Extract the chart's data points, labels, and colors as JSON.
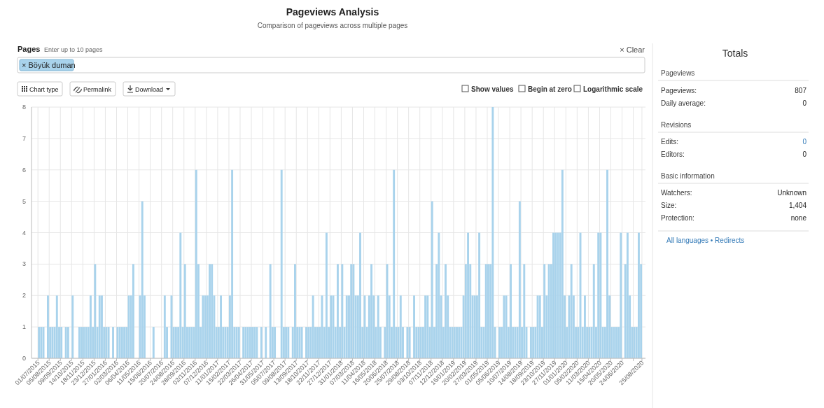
{
  "chart_data": [
    {
      "type": "bar",
      "title": "Pageviews Analysis",
      "subtitle": "Comparison of pageviews across multiple pages",
      "annotations": [
        "Pages",
        "Enter up to 10 pages",
        "× Clear",
        "× Böyük duman",
        "Chart type",
        "Permalink",
        "Download",
        "Show values",
        "Begin at zero",
        "Logarithmic scale"
      ],
      "color": "#a9d3ec",
      "grid": true,
      "ylim": [
        0,
        8
      ],
      "yticks": [
        0,
        1,
        2,
        3,
        4,
        5,
        6,
        7,
        8
      ],
      "xlim": [
        "2015-06-11",
        "2020-09-05"
      ],
      "xticks": [
        {
          "value": "2015-07-01",
          "label": "01/07/2015"
        },
        {
          "value": "2015-08-05",
          "label": "05/08/2015"
        },
        {
          "value": "2015-09-09",
          "label": "09/09/2015"
        },
        {
          "value": "2015-10-14",
          "label": "14/10/2015"
        },
        {
          "value": "2015-11-18",
          "label": "18/11/2015"
        },
        {
          "value": "2015-12-23",
          "label": "23/12/2015"
        },
        {
          "value": "2016-01-27",
          "label": "27/01/2016"
        },
        {
          "value": "2016-03-02",
          "label": "02/03/2016"
        },
        {
          "value": "2016-04-06",
          "label": "06/04/2016"
        },
        {
          "value": "2016-05-11",
          "label": "11/05/2016"
        },
        {
          "value": "2016-06-15",
          "label": "15/06/2016"
        },
        {
          "value": "2016-07-20",
          "label": "20/07/2016"
        },
        {
          "value": "2016-08-24",
          "label": "24/08/2016"
        },
        {
          "value": "2016-09-28",
          "label": "28/09/2016"
        },
        {
          "value": "2016-11-02",
          "label": "02/11/2016"
        },
        {
          "value": "2016-12-07",
          "label": "07/12/2016"
        },
        {
          "value": "2017-01-11",
          "label": "11/01/2017"
        },
        {
          "value": "2017-02-15",
          "label": "15/02/2017"
        },
        {
          "value": "2017-03-22",
          "label": "22/03/2017"
        },
        {
          "value": "2017-04-26",
          "label": "26/04/2017"
        },
        {
          "value": "2017-05-31",
          "label": "31/05/2017"
        },
        {
          "value": "2017-07-05",
          "label": "05/07/2017"
        },
        {
          "value": "2017-08-09",
          "label": "09/08/2017"
        },
        {
          "value": "2017-09-13",
          "label": "13/09/2017"
        },
        {
          "value": "2017-10-18",
          "label": "18/10/2017"
        },
        {
          "value": "2017-11-22",
          "label": "22/11/2017"
        },
        {
          "value": "2017-12-27",
          "label": "27/12/2017"
        },
        {
          "value": "2018-01-31",
          "label": "31/01/2018"
        },
        {
          "value": "2018-03-07",
          "label": "07/03/2018"
        },
        {
          "value": "2018-04-11",
          "label": "11/04/2018"
        },
        {
          "value": "2018-05-16",
          "label": "16/05/2018"
        },
        {
          "value": "2018-06-20",
          "label": "20/06/2018"
        },
        {
          "value": "2018-07-25",
          "label": "25/07/2018"
        },
        {
          "value": "2018-08-29",
          "label": "29/08/2018"
        },
        {
          "value": "2018-10-03",
          "label": "03/10/2018"
        },
        {
          "value": "2018-11-07",
          "label": "07/11/2018"
        },
        {
          "value": "2018-12-12",
          "label": "12/12/2018"
        },
        {
          "value": "2019-01-16",
          "label": "16/01/2019"
        },
        {
          "value": "2019-02-20",
          "label": "20/02/2019"
        },
        {
          "value": "2019-03-27",
          "label": "27/03/2019"
        },
        {
          "value": "2019-05-01",
          "label": "01/05/2019"
        },
        {
          "value": "2019-06-05",
          "label": "05/06/2019"
        },
        {
          "value": "2019-07-10",
          "label": "10/07/2019"
        },
        {
          "value": "2019-08-14",
          "label": "14/08/2019"
        },
        {
          "value": "2019-09-18",
          "label": "18/09/2019"
        },
        {
          "value": "2019-10-23",
          "label": "23/10/2019"
        },
        {
          "value": "2019-11-27",
          "label": "27/11/2019"
        },
        {
          "value": "2020-01-01",
          "label": "01/01/2020"
        },
        {
          "value": "2020-02-05",
          "label": "05/02/2020"
        },
        {
          "value": "2020-03-11",
          "label": "11/03/2020"
        },
        {
          "value": "2020-04-15",
          "label": "15/04/2020"
        },
        {
          "value": "2020-05-20",
          "label": "20/05/2020"
        },
        {
          "value": "2020-06-24",
          "label": "24/06/2020"
        },
        {
          "value": "2020-07-29",
          "label": null
        },
        {
          "value": "2020-08-25",
          "label": "25/08/2020"
        }
      ],
      "x": [
        "2015-07-01",
        "2015-07-08",
        "2015-07-15",
        "2015-07-22",
        "2015-07-29",
        "2015-08-05",
        "2015-08-12",
        "2015-08-19",
        "2015-08-26",
        "2015-09-02",
        "2015-09-09",
        "2015-09-16",
        "2015-09-23",
        "2015-09-30",
        "2015-10-07",
        "2015-10-14",
        "2015-10-21",
        "2015-10-28",
        "2015-11-04",
        "2015-11-11",
        "2015-11-18",
        "2015-11-25",
        "2015-12-02",
        "2015-12-09",
        "2015-12-16",
        "2015-12-23",
        "2015-12-30",
        "2016-01-06",
        "2016-01-13",
        "2016-01-20",
        "2016-01-27",
        "2016-02-03",
        "2016-02-10",
        "2016-02-17",
        "2016-02-24",
        "2016-03-02",
        "2016-03-09",
        "2016-03-16",
        "2016-03-23",
        "2016-03-30",
        "2016-04-06",
        "2016-04-13",
        "2016-04-20",
        "2016-04-27",
        "2016-05-04",
        "2016-05-11",
        "2016-05-18",
        "2016-05-25",
        "2016-06-01",
        "2016-06-08",
        "2016-06-15",
        "2016-06-22",
        "2016-06-29",
        "2016-07-06",
        "2016-07-13",
        "2016-07-20",
        "2016-07-27",
        "2016-08-03",
        "2016-08-10",
        "2016-08-17",
        "2016-08-24",
        "2016-08-31",
        "2016-09-07",
        "2016-09-14",
        "2016-09-21",
        "2016-09-28",
        "2016-10-05",
        "2016-10-12",
        "2016-10-19",
        "2016-10-26",
        "2016-11-02",
        "2016-11-09",
        "2016-11-16",
        "2016-11-23",
        "2016-11-30",
        "2016-12-07",
        "2016-12-14",
        "2016-12-21",
        "2016-12-28",
        "2017-01-04",
        "2017-01-11",
        "2017-01-18",
        "2017-01-25",
        "2017-02-01",
        "2017-02-08",
        "2017-02-15",
        "2017-02-22",
        "2017-03-01",
        "2017-03-08",
        "2017-03-15",
        "2017-03-22",
        "2017-03-29",
        "2017-04-05",
        "2017-04-12",
        "2017-04-19",
        "2017-04-26",
        "2017-05-03",
        "2017-05-10",
        "2017-05-17",
        "2017-05-24",
        "2017-05-31",
        "2017-06-07",
        "2017-06-14",
        "2017-06-21",
        "2017-06-28",
        "2017-07-05",
        "2017-07-12",
        "2017-07-19",
        "2017-07-26",
        "2017-08-02",
        "2017-08-09",
        "2017-08-16",
        "2017-08-23",
        "2017-08-30",
        "2017-09-06",
        "2017-09-13",
        "2017-09-20",
        "2017-09-27",
        "2017-10-04",
        "2017-10-11",
        "2017-10-18",
        "2017-10-25",
        "2017-11-01",
        "2017-11-08",
        "2017-11-15",
        "2017-11-22",
        "2017-11-29",
        "2017-12-06",
        "2017-12-13",
        "2017-12-20",
        "2017-12-27",
        "2018-01-03",
        "2018-01-10",
        "2018-01-17",
        "2018-01-24",
        "2018-01-31",
        "2018-02-07",
        "2018-02-14",
        "2018-02-21",
        "2018-02-28",
        "2018-03-07",
        "2018-03-14",
        "2018-03-21",
        "2018-03-28",
        "2018-04-04",
        "2018-04-11",
        "2018-04-18",
        "2018-04-25",
        "2018-05-02",
        "2018-05-09",
        "2018-05-16",
        "2018-05-23",
        "2018-05-30",
        "2018-06-06",
        "2018-06-13",
        "2018-06-20",
        "2018-06-27",
        "2018-07-04",
        "2018-07-11",
        "2018-07-18",
        "2018-07-25",
        "2018-08-01",
        "2018-08-08",
        "2018-08-15",
        "2018-08-22",
        "2018-08-29",
        "2018-09-05",
        "2018-09-12",
        "2018-09-19",
        "2018-09-26",
        "2018-10-03",
        "2018-10-10",
        "2018-10-17",
        "2018-10-24",
        "2018-10-31",
        "2018-11-07",
        "2018-11-14",
        "2018-11-21",
        "2018-11-28",
        "2018-12-05",
        "2018-12-12",
        "2018-12-19",
        "2018-12-26",
        "2019-01-02",
        "2019-01-09",
        "2019-01-16",
        "2019-01-23",
        "2019-01-30",
        "2019-02-06",
        "2019-02-13",
        "2019-02-20",
        "2019-02-27",
        "2019-03-06",
        "2019-03-13",
        "2019-03-20",
        "2019-03-27",
        "2019-04-03",
        "2019-04-10",
        "2019-04-17",
        "2019-04-24",
        "2019-05-01",
        "2019-05-08",
        "2019-05-15",
        "2019-05-22",
        "2019-05-29",
        "2019-06-05",
        "2019-06-12",
        "2019-06-19",
        "2019-06-26",
        "2019-07-03",
        "2019-07-10",
        "2019-07-17",
        "2019-07-24",
        "2019-07-31",
        "2019-08-07",
        "2019-08-14",
        "2019-08-21",
        "2019-08-28",
        "2019-09-04",
        "2019-09-11",
        "2019-09-18",
        "2019-09-25",
        "2019-10-02",
        "2019-10-09",
        "2019-10-16",
        "2019-10-23",
        "2019-10-30",
        "2019-11-06",
        "2019-11-13",
        "2019-11-20",
        "2019-11-27",
        "2019-12-04",
        "2019-12-11",
        "2019-12-18",
        "2019-12-25",
        "2020-01-01",
        "2020-01-08",
        "2020-01-15",
        "2020-01-22",
        "2020-01-29",
        "2020-02-05",
        "2020-02-12",
        "2020-02-19",
        "2020-02-26",
        "2020-03-04",
        "2020-03-11",
        "2020-03-18",
        "2020-03-25",
        "2020-04-01",
        "2020-04-08",
        "2020-04-15",
        "2020-04-22",
        "2020-04-29",
        "2020-05-06",
        "2020-05-13",
        "2020-05-20",
        "2020-05-27",
        "2020-06-03",
        "2020-06-10",
        "2020-06-17",
        "2020-06-24",
        "2020-07-01",
        "2020-07-08",
        "2020-07-15",
        "2020-07-22",
        "2020-07-29",
        "2020-08-05",
        "2020-08-12",
        "2020-08-19"
      ],
      "values": [
        1,
        1,
        1,
        0,
        2,
        1,
        1,
        1,
        2,
        1,
        1,
        0,
        1,
        1,
        0,
        2,
        0,
        0,
        1,
        1,
        1,
        1,
        1,
        2,
        1,
        3,
        1,
        2,
        2,
        1,
        1,
        1,
        0,
        1,
        0,
        1,
        1,
        1,
        1,
        1,
        2,
        2,
        3,
        0,
        0,
        2,
        5,
        2,
        0,
        0,
        0,
        1,
        0,
        0,
        0,
        0,
        2,
        1,
        0,
        2,
        1,
        1,
        1,
        4,
        1,
        3,
        1,
        1,
        1,
        1,
        6,
        3,
        1,
        2,
        2,
        2,
        3,
        3,
        2,
        1,
        1,
        2,
        1,
        1,
        1,
        2,
        6,
        1,
        1,
        1,
        0,
        1,
        1,
        1,
        1,
        1,
        1,
        1,
        0,
        1,
        0,
        1,
        0,
        3,
        1,
        1,
        0,
        0,
        6,
        1,
        1,
        1,
        0,
        1,
        3,
        1,
        1,
        1,
        0,
        1,
        1,
        1,
        2,
        1,
        1,
        1,
        2,
        1,
        4,
        1,
        2,
        2,
        1,
        3,
        1,
        3,
        1,
        2,
        2,
        3,
        3,
        2,
        2,
        4,
        1,
        2,
        1,
        2,
        3,
        2,
        1,
        2,
        1,
        0,
        1,
        3,
        2,
        1,
        6,
        1,
        1,
        2,
        1,
        0,
        1,
        1,
        0,
        2,
        1,
        1,
        1,
        1,
        2,
        2,
        1,
        5,
        1,
        3,
        4,
        2,
        1,
        3,
        2,
        1,
        1,
        1,
        1,
        1,
        1,
        2,
        3,
        4,
        3,
        2,
        2,
        2,
        4,
        1,
        1,
        3,
        3,
        3,
        8,
        1,
        0,
        1,
        1,
        2,
        2,
        1,
        3,
        1,
        1,
        1,
        5,
        1,
        3,
        1,
        0,
        1,
        1,
        1,
        2,
        2,
        1,
        3,
        2,
        3,
        3,
        4,
        4,
        4,
        4,
        6,
        2,
        1,
        2,
        3,
        2,
        1,
        1,
        4,
        1,
        2,
        1,
        1,
        1,
        3,
        1,
        4,
        4,
        1,
        1,
        6,
        2,
        1,
        1,
        1,
        1,
        4,
        0,
        3,
        4,
        2,
        1,
        1,
        1,
        4,
        3
      ]
    },
    {
      "type": "other",
      "title": "Totals",
      "annotations": [
        "Pageviews",
        "Pageviews:",
        "807",
        "Daily average:",
        "0",
        "Revisions",
        "Edits:",
        "0",
        "Editors:",
        "0",
        "Basic information",
        "Watchers:",
        "Unknown",
        "Size:",
        "1,404",
        "Protection:",
        "none",
        "All languages • Redirects"
      ]
    }
  ]
}
